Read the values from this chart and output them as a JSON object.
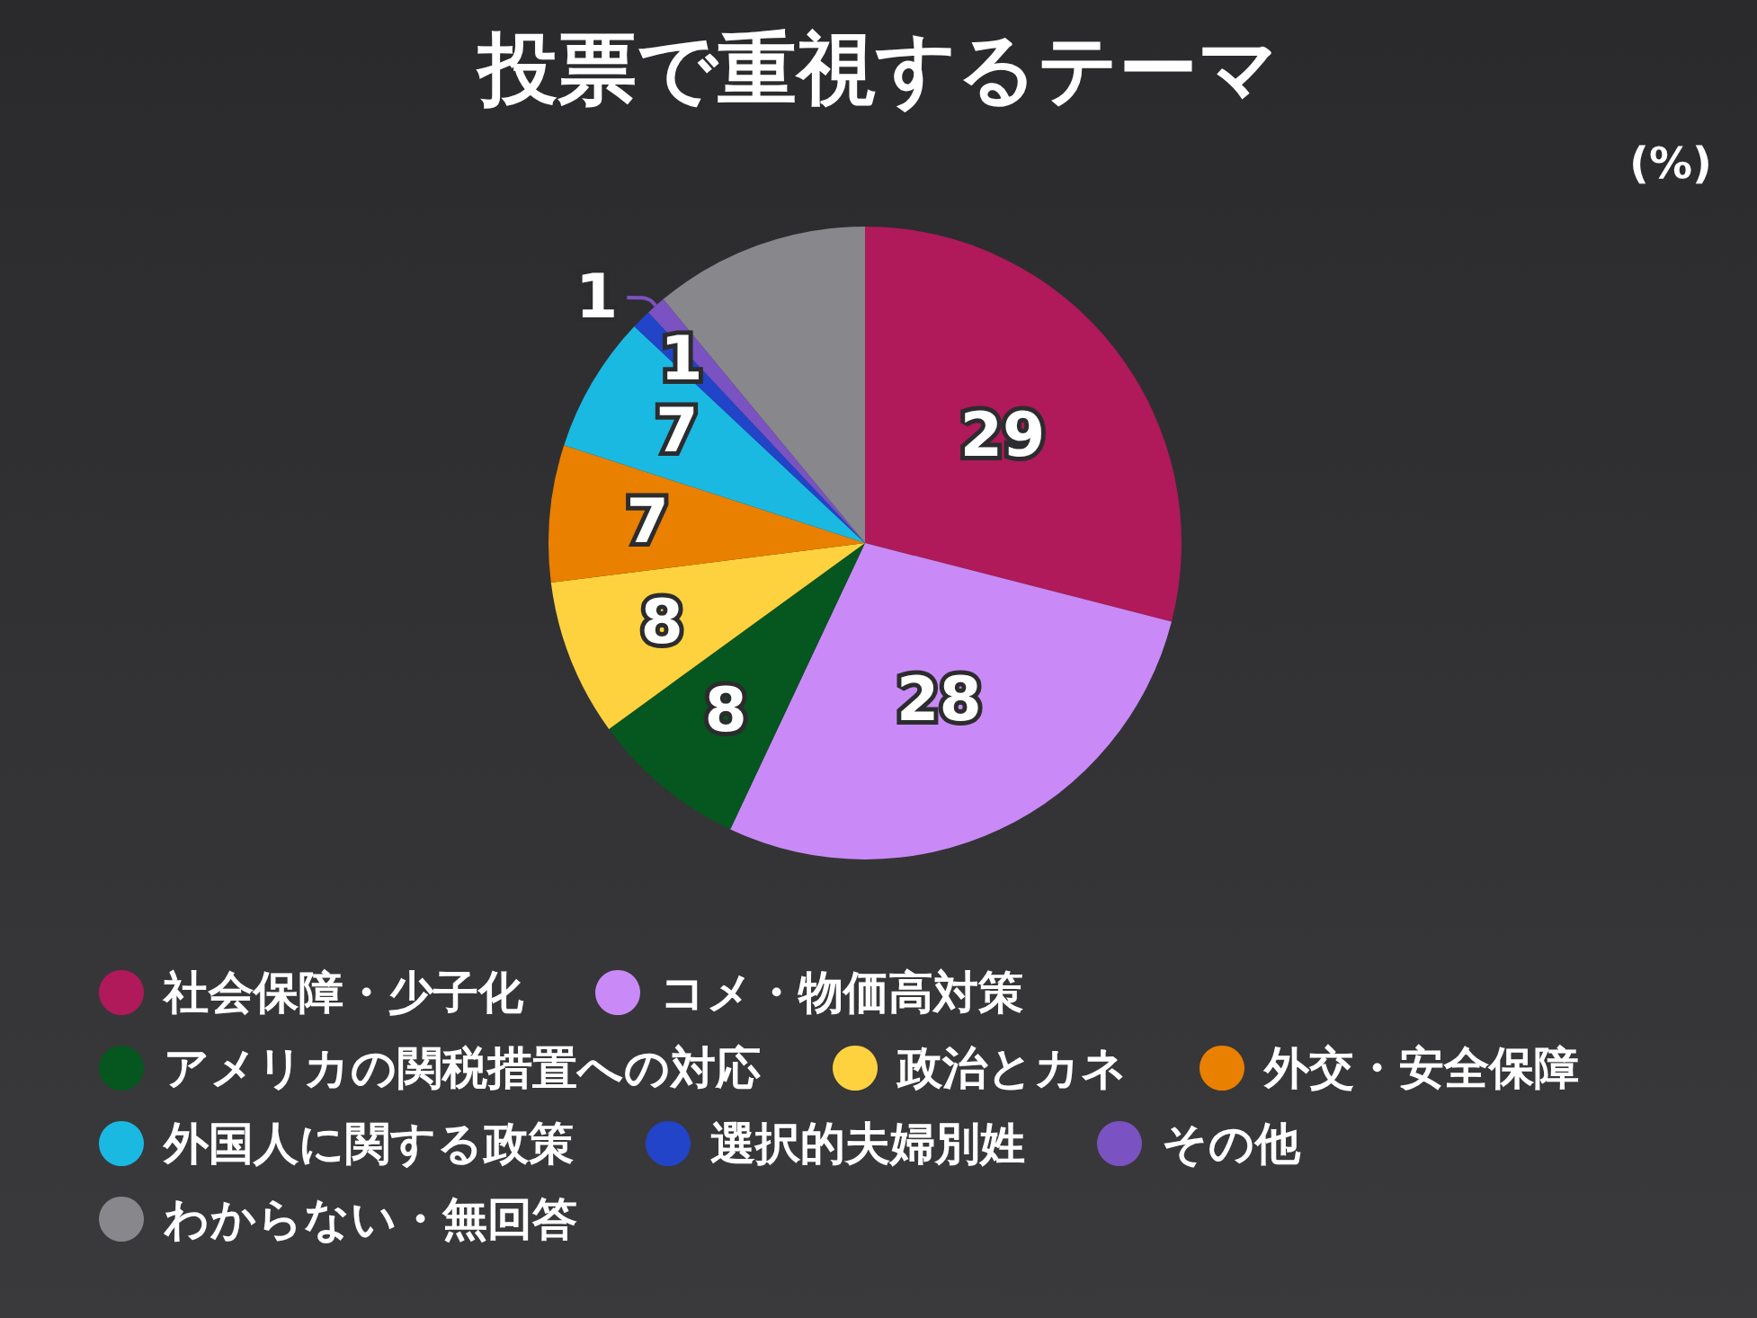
{
  "chart_data": {
    "type": "pie",
    "title": "投票で重視するテーマ",
    "annotations": [
      "(%)"
    ],
    "categories": [
      "社会保障・少子化",
      "コメ・物価高対策",
      "アメリカの関税措置への対応",
      "政治とカネ",
      "外交・安全保障",
      "外国人に関する政策",
      "選択的夫婦別姓",
      "その他",
      "わからない・無回答"
    ],
    "values": [
      29,
      28,
      8,
      8,
      7,
      7,
      1,
      1,
      11
    ],
    "colors": [
      "#b0195a",
      "#c98af7",
      "#06561f",
      "#fdd23e",
      "#e98000",
      "#1ab9e2",
      "#2144c9",
      "#7b52c1",
      "#88878b"
    ],
    "value_labels": [
      "29",
      "28",
      "8",
      "8",
      "7",
      "7",
      "1",
      "1",
      null
    ],
    "legend": "bottom"
  }
}
